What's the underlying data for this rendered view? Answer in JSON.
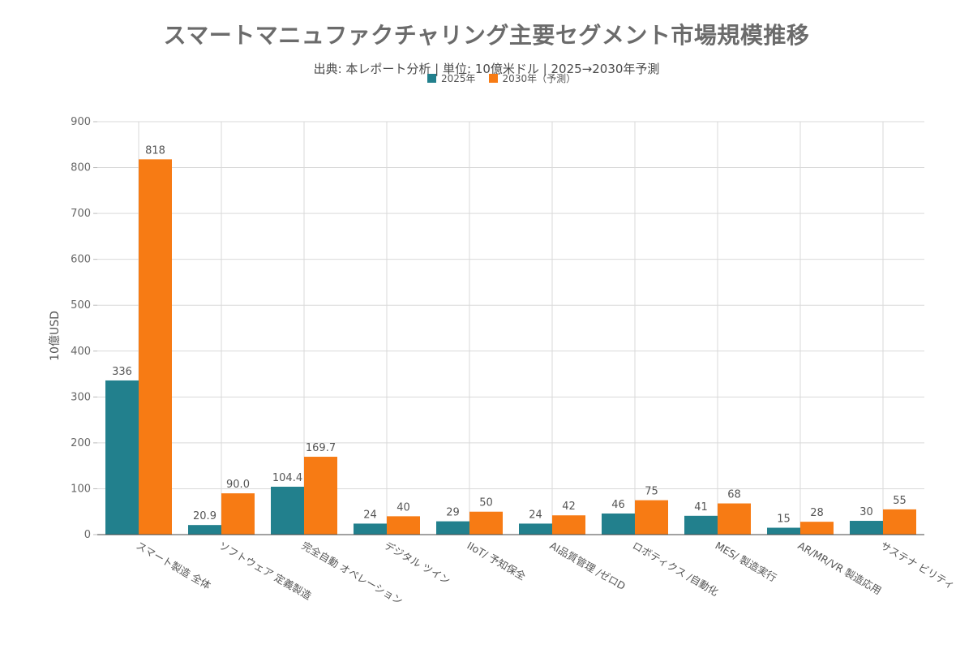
{
  "chart_data": {
    "type": "bar",
    "title": "スマートマニュファクチャリング主要セグメント市場規模推移",
    "subtitle": "出典: 本レポート分析 | 単位: 10億米ドル | 2025→2030年予測",
    "xlabel": "",
    "ylabel": "10億USD",
    "ylim": [
      0,
      900
    ],
    "yticks": [
      0,
      100,
      200,
      300,
      400,
      500,
      600,
      700,
      800,
      900
    ],
    "categories": [
      "スマート製造 全体",
      "ソフトウェア 定義製造",
      "完全自動 オペレーション",
      "デジタル ツイン",
      "IIoT/ 予知保全",
      "AI品質管理 /ゼロD",
      "ロボティクス /自動化",
      "MES/ 製造実行",
      "AR/MR/VR 製造応用",
      "サステナ ビリティ"
    ],
    "series": [
      {
        "name": "2025年",
        "color": "#22808d",
        "values": [
          336,
          20.9,
          104.4,
          24,
          29,
          24,
          46,
          41,
          15,
          30
        ],
        "labels": [
          "336",
          "20.9",
          "104.4",
          "24",
          "29",
          "24",
          "46",
          "41",
          "15",
          "30"
        ]
      },
      {
        "name": "2030年（予測）",
        "color": "#f77b14",
        "values": [
          818,
          90.0,
          169.7,
          40,
          50,
          42,
          75,
          68,
          28,
          55
        ],
        "labels": [
          "818",
          "90.0",
          "169.7",
          "40",
          "50",
          "42",
          "75",
          "68",
          "28",
          "55"
        ]
      }
    ],
    "grid": true,
    "legend_position": "top-center"
  }
}
